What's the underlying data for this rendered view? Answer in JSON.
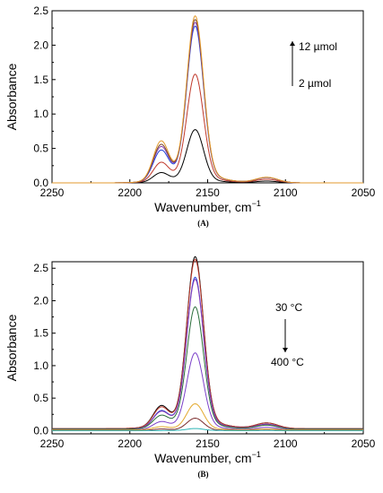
{
  "chart_data": [
    {
      "type": "line",
      "panel_label": "(A)",
      "xlabel": "Wavenumber, cm",
      "xlabel_sup": "−1",
      "ylabel": "Absorbance",
      "xlim": [
        2250,
        2050
      ],
      "ylim": [
        0,
        2.5
      ],
      "xticks": [
        2250,
        2200,
        2150,
        2100,
        2050
      ],
      "yticks": [
        0.0,
        0.5,
        1.0,
        1.5,
        2.0,
        2.5
      ],
      "annotations": {
        "top": "12 µmol",
        "bottom": "2 µmol",
        "arrow": "up"
      },
      "series": [
        {
          "color": "#000000",
          "peak": 0.73,
          "shoulder": 0.13,
          "base": 0.0
        },
        {
          "color": "#c0392b",
          "peak": 1.49,
          "shoulder": 0.26,
          "base": 0.0
        },
        {
          "color": "#1f3fd6",
          "peak": 2.15,
          "shoulder": 0.42,
          "base": 0.0
        },
        {
          "color": "#8a3fb5",
          "peak": 2.2,
          "shoulder": 0.47,
          "base": 0.0
        },
        {
          "color": "#7a4a2a",
          "peak": 2.24,
          "shoulder": 0.5,
          "base": 0.0
        },
        {
          "color": "#e39a2d",
          "peak": 2.29,
          "shoulder": 0.55,
          "base": 0.0
        }
      ]
    },
    {
      "type": "line",
      "panel_label": "(B)",
      "xlabel": "Wavenumber, cm",
      "xlabel_sup": "−1",
      "ylabel": "Absorbance",
      "xlim": [
        2250,
        2050
      ],
      "ylim": [
        -0.05,
        2.6
      ],
      "xticks": [
        2250,
        2200,
        2150,
        2100,
        2050
      ],
      "yticks": [
        0.0,
        0.5,
        1.0,
        1.5,
        2.0,
        2.5
      ],
      "annotations": {
        "top": "30 °C",
        "bottom": "400 °C",
        "arrow": "down"
      },
      "series": [
        {
          "color": "#000000",
          "peak": 2.5,
          "shoulder": 0.29,
          "base": 0.03
        },
        {
          "color": "#c0392b",
          "peak": 2.46,
          "shoulder": 0.27,
          "base": 0.03
        },
        {
          "color": "#1f3fd6",
          "peak": 2.21,
          "shoulder": 0.23,
          "base": 0.02
        },
        {
          "color": "#8a3fb5",
          "peak": 2.18,
          "shoulder": 0.22,
          "base": 0.02
        },
        {
          "color": "#2a6e3a",
          "peak": 1.78,
          "shoulder": 0.17,
          "base": 0.02
        },
        {
          "color": "#7b3fc9",
          "peak": 1.12,
          "shoulder": 0.1,
          "base": 0.01
        },
        {
          "color": "#e3a92d",
          "peak": 0.38,
          "shoulder": 0.04,
          "base": 0.01
        },
        {
          "color": "#7a2a2a",
          "peak": 0.18,
          "shoulder": 0.02,
          "base": 0.0
        },
        {
          "color": "#2fb5b5",
          "peak": 0.03,
          "shoulder": 0.0,
          "base": 0.0
        }
      ]
    }
  ]
}
